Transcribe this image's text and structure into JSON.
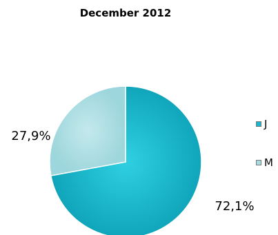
{
  "chart_data": {
    "type": "pie",
    "title": "December 2012",
    "categories": [
      "J",
      "M"
    ],
    "values": [
      72.1,
      27.9
    ],
    "data_labels": [
      "72,1%",
      "27,9%"
    ],
    "colors": [
      "#19b8cc",
      "#a8dde2"
    ],
    "legend_position": "right"
  }
}
